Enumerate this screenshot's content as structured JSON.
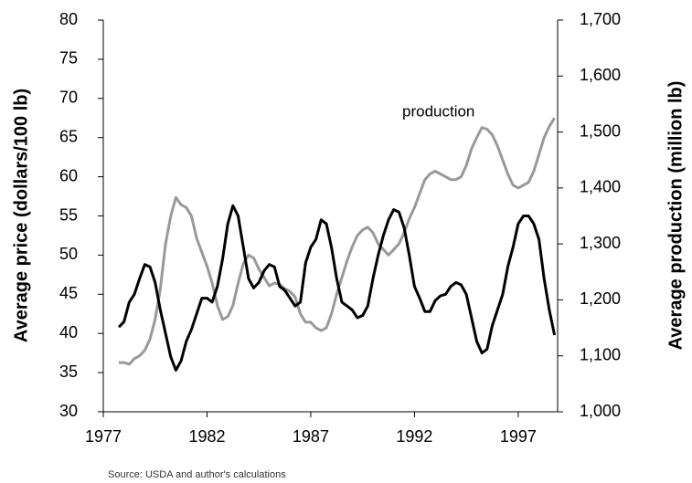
{
  "chart_data": {
    "type": "line",
    "y_label": "Average price (dollars/100 lb)",
    "y2_label": "Average production (million lb)",
    "annotation": "production",
    "source": "Source: USDA and author's calculations",
    "xlim": [
      1977,
      1998.9
    ],
    "xticks": [
      1977,
      1982,
      1987,
      1992,
      1997
    ],
    "ylim": [
      30,
      80
    ],
    "yticks": [
      30,
      35,
      40,
      45,
      50,
      55,
      60,
      65,
      70,
      75,
      80
    ],
    "y2lim": [
      1000,
      1700
    ],
    "y2ticks": [
      {
        "value": 1000,
        "label": "1,000"
      },
      {
        "value": 1100,
        "label": "1,100"
      },
      {
        "value": 1200,
        "label": "1,200"
      },
      {
        "value": 1300,
        "label": "1,300"
      },
      {
        "value": 1400,
        "label": "1,400"
      },
      {
        "value": 1500,
        "label": "1,500"
      },
      {
        "value": 1600,
        "label": "1,600"
      },
      {
        "value": 1700,
        "label": "1,700"
      }
    ],
    "x": [
      1977.75,
      1978,
      1978.25,
      1978.5,
      1978.75,
      1979,
      1979.25,
      1979.5,
      1979.75,
      1980,
      1980.25,
      1980.5,
      1980.75,
      1981,
      1981.25,
      1981.5,
      1981.75,
      1982,
      1982.25,
      1982.5,
      1982.75,
      1983,
      1983.25,
      1983.5,
      1983.75,
      1984,
      1984.25,
      1984.5,
      1984.75,
      1985,
      1985.25,
      1985.5,
      1985.75,
      1986,
      1986.25,
      1986.5,
      1986.75,
      1987,
      1987.25,
      1987.5,
      1987.75,
      1988,
      1988.25,
      1988.5,
      1988.75,
      1989,
      1989.25,
      1989.5,
      1989.75,
      1990,
      1990.25,
      1990.5,
      1990.75,
      1991,
      1991.25,
      1991.5,
      1991.75,
      1992,
      1992.25,
      1992.5,
      1992.75,
      1993,
      1993.25,
      1993.5,
      1993.75,
      1994,
      1994.25,
      1994.5,
      1994.75,
      1995,
      1995.25,
      1995.5,
      1995.75,
      1996,
      1996.25,
      1996.5,
      1996.75,
      1997,
      1997.25,
      1997.5,
      1997.75,
      1998,
      1998.25,
      1998.5,
      1998.75
    ],
    "series": [
      {
        "color": "#000000",
        "axis": "y",
        "values": [
          40.8,
          41.5,
          44,
          45,
          47,
          48.8,
          48.5,
          46.5,
          43,
          40,
          37,
          35.3,
          36.5,
          39,
          40.5,
          42.5,
          44.5,
          44.5,
          44,
          46,
          49.5,
          54,
          56.3,
          55,
          51,
          47,
          45.8,
          46.5,
          48,
          48.8,
          48.5,
          46,
          45.5,
          44.5,
          43.5,
          44,
          49,
          51,
          52,
          54.5,
          54,
          51,
          47,
          44,
          43.5,
          43,
          42,
          42.3,
          43.5,
          47,
          50,
          52.5,
          54.5,
          55.8,
          55.5,
          53.5,
          50,
          46,
          44.5,
          42.8,
          42.8,
          44.2,
          44.8,
          45,
          46,
          46.5,
          46.2,
          45,
          42,
          39,
          37.5,
          38,
          41,
          43,
          45,
          48.5,
          51,
          54,
          55,
          55,
          54,
          52,
          47,
          43,
          39.8
        ]
      },
      {
        "color": "#999999",
        "axis": "y2",
        "values": [
          1088,
          1088,
          1085,
          1095,
          1100,
          1110,
          1130,
          1165,
          1220,
          1300,
          1350,
          1383,
          1370,
          1365,
          1350,
          1310,
          1285,
          1260,
          1230,
          1190,
          1165,
          1170,
          1190,
          1230,
          1265,
          1280,
          1275,
          1255,
          1240,
          1225,
          1230,
          1228,
          1220,
          1215,
          1205,
          1175,
          1160,
          1160,
          1150,
          1145,
          1150,
          1175,
          1210,
          1240,
          1270,
          1295,
          1315,
          1325,
          1330,
          1320,
          1300,
          1290,
          1280,
          1290,
          1300,
          1320,
          1345,
          1365,
          1390,
          1415,
          1425,
          1430,
          1425,
          1420,
          1415,
          1415,
          1420,
          1440,
          1470,
          1490,
          1508,
          1505,
          1495,
          1475,
          1450,
          1425,
          1405,
          1400,
          1405,
          1410,
          1430,
          1460,
          1490,
          1510,
          1525
        ]
      }
    ]
  }
}
